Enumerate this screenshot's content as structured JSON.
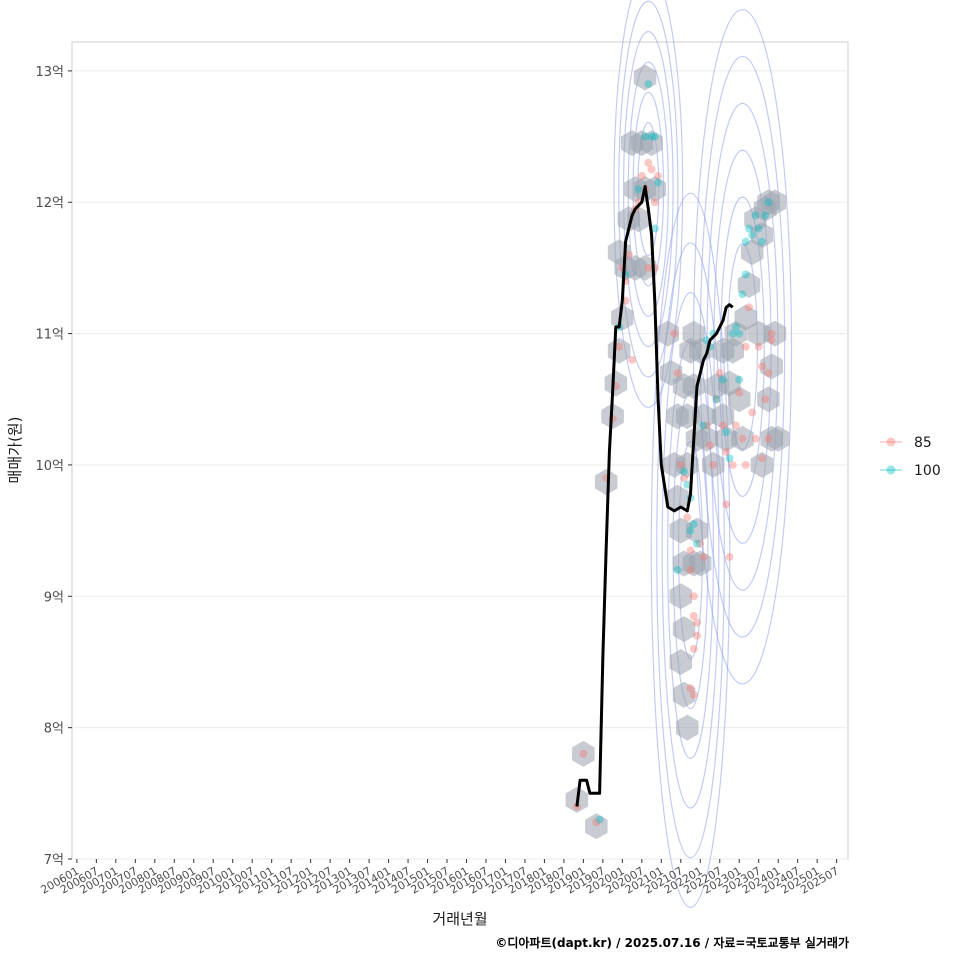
{
  "chart_data": {
    "type": "scatter",
    "title": "",
    "xlabel": "거래년월",
    "ylabel": "매매가(원)",
    "caption": "©디아파트(dapt.kr) / 2025.07.16 / 자료=국토교통부 실거래가",
    "x_ticks": [
      "200601",
      "200607",
      "200701",
      "200707",
      "200801",
      "200807",
      "200901",
      "200907",
      "201001",
      "201007",
      "201101",
      "201107",
      "201201",
      "201207",
      "201301",
      "201307",
      "201401",
      "201407",
      "201501",
      "201507",
      "201601",
      "201607",
      "201701",
      "201707",
      "201801",
      "201807",
      "201901",
      "201907",
      "202001",
      "202007",
      "202101",
      "202107",
      "202201",
      "202207",
      "202301",
      "202307",
      "202401",
      "202407",
      "202501",
      "202507"
    ],
    "x_range_months": [
      -1.5,
      237.5
    ],
    "y_ticks": [
      {
        "value": 7,
        "label": "7억"
      },
      {
        "value": 8,
        "label": "8억"
      },
      {
        "value": 9,
        "label": "9억"
      },
      {
        "value": 10,
        "label": "10억"
      },
      {
        "value": 11,
        "label": "11억"
      },
      {
        "value": 12,
        "label": "12억"
      },
      {
        "value": 13,
        "label": "13억"
      }
    ],
    "ylim": [
      7.0,
      13.22
    ],
    "y_unit": "억",
    "legend": {
      "position": "right",
      "entries": [
        {
          "name": "85",
          "color": "#F8766D"
        },
        {
          "name": "100",
          "color": "#00BFC4"
        }
      ]
    },
    "series": [
      {
        "name": "85",
        "color": "#F8766D",
        "points": [
          [
            154,
            7.4
          ],
          [
            156,
            7.8
          ],
          [
            160,
            7.28
          ],
          [
            163,
            9.9
          ],
          [
            165,
            10.35
          ],
          [
            166,
            10.6
          ],
          [
            167,
            10.9
          ],
          [
            169,
            11.25
          ],
          [
            169,
            11.4
          ],
          [
            171,
            10.8
          ],
          [
            168,
            11.5
          ],
          [
            170,
            11.6
          ],
          [
            172,
            11.95
          ],
          [
            173,
            12.0
          ],
          [
            174,
            12.2
          ],
          [
            175,
            12.1
          ],
          [
            176,
            12.3
          ],
          [
            177,
            12.25
          ],
          [
            178,
            12.0
          ],
          [
            178,
            11.5
          ],
          [
            176,
            11.5
          ],
          [
            179,
            12.2
          ],
          [
            184,
            11.0
          ],
          [
            185,
            10.7
          ],
          [
            186,
            10.0
          ],
          [
            187,
            9.9
          ],
          [
            188,
            9.6
          ],
          [
            189,
            9.35
          ],
          [
            189,
            9.2
          ],
          [
            190,
            9.0
          ],
          [
            190,
            8.85
          ],
          [
            191,
            8.7
          ],
          [
            190,
            8.6
          ],
          [
            189,
            8.3
          ],
          [
            190,
            8.25
          ],
          [
            191,
            8.8
          ],
          [
            192,
            9.4
          ],
          [
            193,
            9.3
          ],
          [
            194,
            10.3
          ],
          [
            195,
            10.15
          ],
          [
            196,
            10.0
          ],
          [
            197,
            10.5
          ],
          [
            198,
            10.7
          ],
          [
            199,
            10.3
          ],
          [
            200,
            9.7
          ],
          [
            200,
            10.1
          ],
          [
            201,
            9.3
          ],
          [
            202,
            10.0
          ],
          [
            203,
            10.3
          ],
          [
            204,
            10.55
          ],
          [
            205,
            10.2
          ],
          [
            206,
            10.9
          ],
          [
            207,
            11.2
          ],
          [
            208,
            10.4
          ],
          [
            209,
            10.2
          ],
          [
            210,
            10.9
          ],
          [
            211,
            10.75
          ],
          [
            212,
            10.5
          ],
          [
            213,
            10.7
          ],
          [
            214,
            11.0
          ],
          [
            214,
            10.95
          ],
          [
            213,
            10.2
          ],
          [
            206,
            10.0
          ],
          [
            211,
            10.05
          ]
        ]
      },
      {
        "name": "100",
        "color": "#00BFC4",
        "points": [
          [
            161,
            7.3
          ],
          [
            167,
            11.05
          ],
          [
            169,
            11.45
          ],
          [
            173,
            12.1
          ],
          [
            175,
            12.5
          ],
          [
            176,
            12.9
          ],
          [
            177,
            12.5
          ],
          [
            178,
            12.5
          ],
          [
            179,
            12.15
          ],
          [
            178,
            11.8
          ],
          [
            185,
            9.2
          ],
          [
            187,
            9.95
          ],
          [
            188,
            9.85
          ],
          [
            189,
            9.75
          ],
          [
            189,
            9.5
          ],
          [
            190,
            9.55
          ],
          [
            191,
            9.4
          ],
          [
            193,
            10.3
          ],
          [
            194,
            10.95
          ],
          [
            195,
            10.9
          ],
          [
            196,
            11.0
          ],
          [
            197,
            10.5
          ],
          [
            199,
            10.65
          ],
          [
            200,
            10.25
          ],
          [
            201,
            10.05
          ],
          [
            202,
            11.0
          ],
          [
            203,
            11.05
          ],
          [
            204,
            10.65
          ],
          [
            205,
            11.3
          ],
          [
            206,
            11.45
          ],
          [
            206,
            11.7
          ],
          [
            207,
            11.8
          ],
          [
            208,
            11.75
          ],
          [
            209,
            11.9
          ],
          [
            210,
            11.8
          ],
          [
            211,
            11.7
          ],
          [
            212,
            11.9
          ],
          [
            213,
            12.0
          ],
          [
            204,
            11.0
          ]
        ]
      }
    ],
    "trend_line": {
      "color": "#000000",
      "points": [
        [
          154,
          7.4
        ],
        [
          155,
          7.6
        ],
        [
          157,
          7.6
        ],
        [
          158,
          7.5
        ],
        [
          161,
          7.5
        ],
        [
          162,
          8.55
        ],
        [
          163,
          9.35
        ],
        [
          164,
          10.1
        ],
        [
          165,
          10.55
        ],
        [
          166,
          11.05
        ],
        [
          167,
          11.05
        ],
        [
          168,
          11.25
        ],
        [
          169,
          11.7
        ],
        [
          170,
          11.8
        ],
        [
          171,
          11.9
        ],
        [
          172,
          11.95
        ],
        [
          174,
          12.0
        ],
        [
          175,
          12.12
        ],
        [
          176,
          11.95
        ],
        [
          177,
          11.75
        ],
        [
          178,
          11.25
        ],
        [
          179,
          10.5
        ],
        [
          180,
          10.0
        ],
        [
          182,
          9.68
        ],
        [
          184,
          9.65
        ],
        [
          186,
          9.68
        ],
        [
          188,
          9.65
        ],
        [
          189,
          9.78
        ],
        [
          190,
          10.2
        ],
        [
          191,
          10.6
        ],
        [
          192,
          10.7
        ],
        [
          193,
          10.8
        ],
        [
          194,
          10.85
        ],
        [
          195,
          10.95
        ],
        [
          197,
          11.0
        ],
        [
          199,
          11.1
        ],
        [
          200,
          11.2
        ],
        [
          201,
          11.22
        ],
        [
          202,
          11.2
        ]
      ]
    },
    "hexbins": [
      [
        154,
        7.45
      ],
      [
        156,
        7.8
      ],
      [
        160,
        7.25
      ],
      [
        163,
        9.87
      ],
      [
        165,
        10.37
      ],
      [
        166,
        10.62
      ],
      [
        167,
        10.87
      ],
      [
        168,
        11.12
      ],
      [
        167,
        11.62
      ],
      [
        169,
        11.5
      ],
      [
        172,
        11.5
      ],
      [
        175,
        11.5
      ],
      [
        170,
        11.87
      ],
      [
        173,
        11.87
      ],
      [
        172,
        12.1
      ],
      [
        175,
        12.1
      ],
      [
        171,
        12.45
      ],
      [
        174,
        12.45
      ],
      [
        177,
        12.45
      ],
      [
        175,
        12.95
      ],
      [
        178,
        12.1
      ],
      [
        182,
        11.0
      ],
      [
        183,
        10.7
      ],
      [
        184,
        10.0
      ],
      [
        185,
        9.75
      ],
      [
        186,
        9.5
      ],
      [
        187,
        9.25
      ],
      [
        186,
        9.0
      ],
      [
        187,
        8.75
      ],
      [
        186,
        8.5
      ],
      [
        187,
        8.25
      ],
      [
        188,
        8.0
      ],
      [
        190,
        9.25
      ],
      [
        191,
        9.5
      ],
      [
        185,
        10.37
      ],
      [
        188,
        10.37
      ],
      [
        187,
        10.6
      ],
      [
        190,
        10.6
      ],
      [
        189,
        10.87
      ],
      [
        192,
        10.87
      ],
      [
        190,
        11.0
      ],
      [
        188,
        10.0
      ],
      [
        191,
        10.2
      ],
      [
        193,
        10.37
      ],
      [
        192,
        9.25
      ],
      [
        194,
        10.2
      ],
      [
        196,
        10.0
      ],
      [
        197,
        10.6
      ],
      [
        199,
        10.37
      ],
      [
        200,
        10.2
      ],
      [
        199,
        10.87
      ],
      [
        201,
        10.62
      ],
      [
        202,
        10.87
      ],
      [
        203,
        11.0
      ],
      [
        204,
        10.5
      ],
      [
        205,
        10.2
      ],
      [
        206,
        11.12
      ],
      [
        207,
        11.37
      ],
      [
        208,
        11.62
      ],
      [
        209,
        11.87
      ],
      [
        210,
        11.0
      ],
      [
        211,
        11.75
      ],
      [
        212,
        11.95
      ],
      [
        213,
        12.0
      ],
      [
        215,
        12.0
      ],
      [
        213,
        10.5
      ],
      [
        214,
        10.2
      ],
      [
        215,
        11.0
      ],
      [
        211,
        10.0
      ],
      [
        214,
        10.75
      ],
      [
        216,
        10.2
      ]
    ],
    "density_centers": [
      {
        "x": 176,
        "y": 12.1,
        "sx": 3.5,
        "sy": 0.55
      },
      {
        "x": 189,
        "y": 9.35,
        "sx": 4.0,
        "sy": 0.9
      },
      {
        "x": 205,
        "y": 10.9,
        "sx": 5.0,
        "sy": 0.85
      }
    ]
  }
}
